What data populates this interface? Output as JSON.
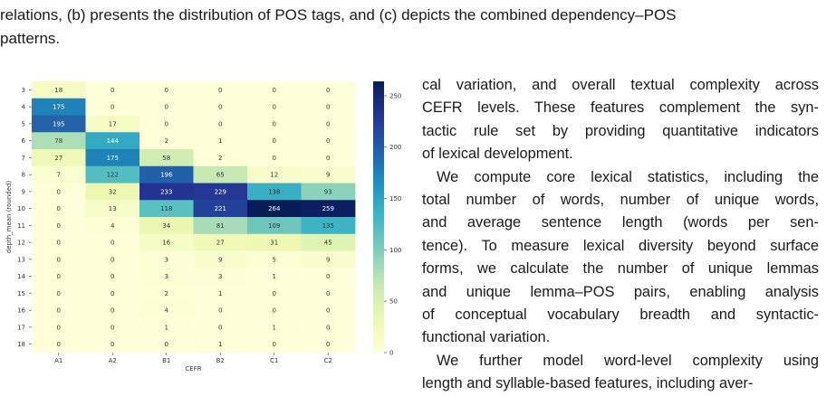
{
  "caption_tail": {
    "line1": "relations, (b) presents the distribution of POS tags, and (c) depicts the combined dependency–POS",
    "line2": "patterns."
  },
  "chart_data": {
    "type": "heatmap",
    "xlabel": "CEFR",
    "ylabel": "depth_mean (rounded)",
    "x_categories": [
      "A1",
      "A2",
      "B1",
      "B2",
      "C1",
      "C2"
    ],
    "y_categories": [
      "3",
      "4",
      "5",
      "6",
      "7",
      "8",
      "9",
      "10",
      "11",
      "12",
      "13",
      "14",
      "15",
      "16",
      "17",
      "18"
    ],
    "values": [
      [
        18,
        0,
        0,
        0,
        0,
        0
      ],
      [
        175,
        0,
        0,
        0,
        0,
        0
      ],
      [
        195,
        17,
        0,
        0,
        0,
        0
      ],
      [
        78,
        144,
        2,
        1,
        0,
        0
      ],
      [
        27,
        175,
        58,
        2,
        0,
        0
      ],
      [
        7,
        122,
        196,
        65,
        12,
        9
      ],
      [
        0,
        32,
        233,
        229,
        138,
        93
      ],
      [
        0,
        13,
        118,
        221,
        264,
        259
      ],
      [
        0,
        4,
        34,
        81,
        109,
        135
      ],
      [
        0,
        0,
        16,
        27,
        31,
        45
      ],
      [
        0,
        0,
        3,
        9,
        5,
        9
      ],
      [
        0,
        0,
        3,
        3,
        1,
        0
      ],
      [
        0,
        0,
        2,
        1,
        0,
        0
      ],
      [
        0,
        0,
        4,
        0,
        0,
        0
      ],
      [
        0,
        0,
        1,
        0,
        1,
        0
      ],
      [
        0,
        0,
        0,
        1,
        0,
        0
      ]
    ],
    "colormap": "YlGnBu",
    "colorbar_ticks": [
      0,
      50,
      100,
      150,
      200,
      250
    ],
    "vmin": 0,
    "vmax": 264
  },
  "body_text": {
    "p1_lines": [
      "cal variation, and overall textual complexity across",
      "CEFR levels. These features complement the syn-",
      "tactic rule set by providing quantitative indicators",
      "of lexical development."
    ],
    "p2_lines": [
      "We compute core lexical statistics, including the",
      "total number of words, number of unique words,",
      "and average sentence length (words per sen-",
      "tence). To measure lexical diversity beyond surface",
      "forms, we calculate the number of unique lemmas",
      "and unique lemma–POS pairs, enabling analysis",
      "of conceptual vocabulary breadth and syntactic-",
      "functional variation."
    ],
    "p3_lines": [
      "We further model word-level complexity using",
      "length and syllable-based features, including aver-"
    ]
  }
}
